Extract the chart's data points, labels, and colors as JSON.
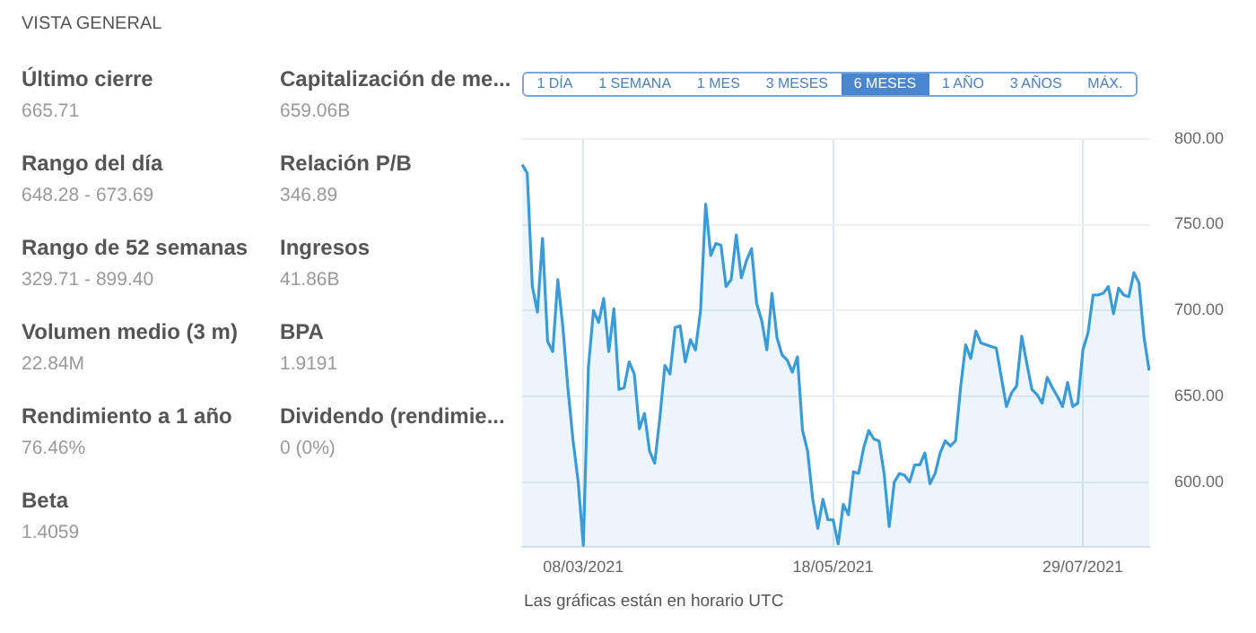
{
  "chart_data": [
    {
      "type": "other",
      "title": "VISTA GENERAL",
      "annotations": [
        "Último cierre",
        "665.71",
        "Capitalización de me...",
        "659.06B",
        "Rango del día",
        "648.28 - 673.69",
        "Relación P/B",
        "346.89",
        "Rango de 52 semanas",
        "329.71 - 899.40",
        "Ingresos",
        "41.86B",
        "Volumen medio (3 m)",
        "22.84M",
        "BPA",
        "1.9191",
        "Rendimiento a 1 año",
        "76.46%",
        "Dividendo (rendimie...",
        "0 (0%)",
        "Beta",
        "1.4059"
      ]
    },
    {
      "type": "area",
      "color": "#3a9bd9",
      "marker": "none",
      "grid": true,
      "legend": false,
      "categories": [
        null,
        null,
        null,
        null,
        null,
        null,
        null,
        null,
        null,
        null,
        null,
        null,
        "08/03/2021",
        null,
        null,
        null,
        null,
        null,
        null,
        null,
        null,
        null,
        null,
        null,
        null,
        null,
        null,
        null,
        null,
        null,
        null,
        null,
        null,
        null,
        null,
        null,
        null,
        null,
        null,
        null,
        null,
        null,
        null,
        null,
        null,
        null,
        null,
        null,
        null,
        null,
        null,
        null,
        null,
        null,
        null,
        null,
        null,
        null,
        null,
        null,
        null,
        "18/05/2021",
        null,
        null,
        null,
        null,
        null,
        null,
        null,
        null,
        null,
        null,
        null,
        null,
        null,
        null,
        null,
        null,
        null,
        null,
        null,
        null,
        null,
        null,
        null,
        null,
        null,
        null,
        null,
        null,
        null,
        null,
        null,
        null,
        null,
        null,
        null,
        null,
        null,
        null,
        null,
        null,
        null,
        null,
        null,
        null,
        null,
        null,
        null,
        null,
        "29/07/2021",
        null,
        null,
        null,
        null,
        null,
        null,
        null,
        null,
        null,
        null,
        null,
        null,
        null
      ],
      "values": [
        785,
        780,
        714,
        699,
        742,
        682,
        676,
        718,
        690,
        654,
        624,
        600,
        563,
        667,
        700,
        693,
        707,
        676,
        701,
        654,
        655,
        670,
        663,
        631,
        640,
        618,
        611,
        637,
        668,
        663,
        690,
        691,
        670,
        683,
        677,
        700,
        762,
        732,
        739,
        738,
        714,
        718,
        744,
        719,
        729,
        736,
        704,
        694,
        677,
        710,
        684,
        674,
        671,
        664,
        673,
        630,
        618,
        590,
        573,
        590,
        578,
        578,
        564,
        587,
        581,
        606,
        605,
        620,
        630,
        625,
        624,
        605,
        574,
        600,
        605,
        604,
        600,
        610,
        610,
        617,
        599,
        605,
        617,
        624,
        621,
        624,
        655,
        680,
        672,
        688,
        681,
        680,
        679,
        678,
        661,
        644,
        652,
        656,
        685,
        669,
        654,
        651,
        646,
        661,
        655,
        650,
        644,
        658,
        644,
        646,
        677,
        687,
        709,
        709,
        710,
        714,
        698,
        713,
        709,
        708,
        722,
        716,
        684,
        665
      ],
      "ylim": [
        562,
        800
      ],
      "yticks": [
        {
          "value": 600,
          "label": "600.00"
        },
        {
          "value": 650,
          "label": "650.00"
        },
        {
          "value": 700,
          "label": "700.00"
        },
        {
          "value": 750,
          "label": "750.00"
        },
        {
          "value": 800,
          "label": "800.00"
        }
      ],
      "annotations": [
        "1 DÍA",
        "1 SEMANA",
        "1 MES",
        "3 MESES",
        "6 MESES",
        "1 AÑO",
        "3 AÑOS",
        "MÁX.",
        "Las gráficas están en horario UTC"
      ]
    }
  ]
}
